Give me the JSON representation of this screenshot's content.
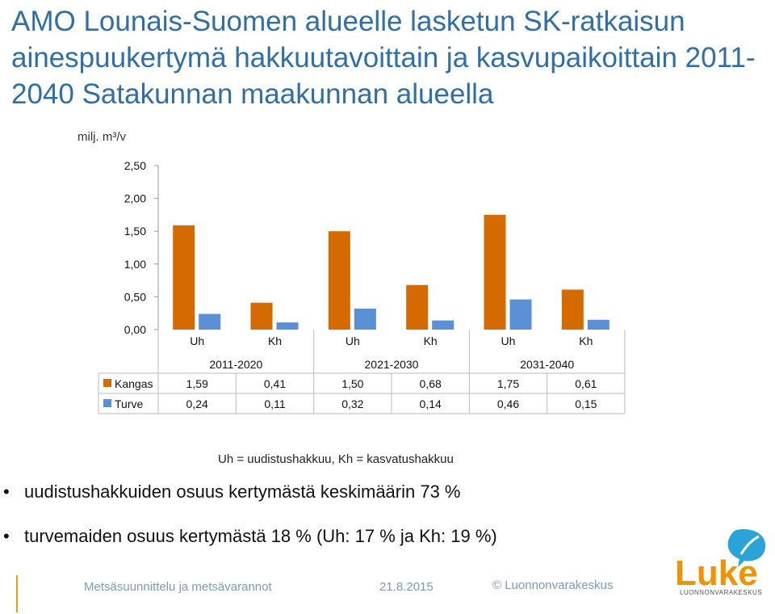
{
  "slide": {
    "title": "AMO Lounais-Suomen alueelle lasketun SK-ratkaisun ainespuukertymä hakkuutavoittain ja kasvupaikoittain 2011-2040 Satakunnan maakunnan alueella",
    "unit_label": "milj. m³/v",
    "note": "Uh = uudistushakkuu, Kh = kasvatushakkuu",
    "bullets": [
      "uudistushakkuiden osuus kertymästä keskimäärin 73 %",
      "turvemaiden osuus kertymästä 18 % (Uh: 17 % ja Kh: 19 %)"
    ],
    "footer": {
      "left": "Metsäsuunnittelu ja metsävarannot",
      "date": "21.8.2015",
      "copyright": "© Luonnonvarakeskus"
    },
    "logo": {
      "text": "Luke",
      "subtext": "LUONNONVARAKESKUS",
      "color": "#f29200",
      "bubble_color": "#2aa3d8"
    }
  },
  "chart_data": {
    "type": "bar",
    "categories": [
      "Uh",
      "Kh",
      "Uh",
      "Kh",
      "Uh",
      "Kh"
    ],
    "groups": [
      "2011-2020",
      "2021-2030",
      "2031-2040"
    ],
    "series": [
      {
        "name": "Kangas",
        "color": "#d46a00",
        "values": [
          1.59,
          0.41,
          1.5,
          0.68,
          1.75,
          0.61
        ],
        "labels": [
          "1,59",
          "0,41",
          "1,50",
          "0,68",
          "1,75",
          "0,61"
        ]
      },
      {
        "name": "Turve",
        "color": "#5b8fd6",
        "values": [
          0.24,
          0.11,
          0.32,
          0.14,
          0.46,
          0.15
        ],
        "labels": [
          "0,24",
          "0,11",
          "0,32",
          "0,14",
          "0,46",
          "0,15"
        ]
      }
    ],
    "ylim": [
      0,
      2.5
    ],
    "yticks": [
      "0,00",
      "0,50",
      "1,00",
      "1,50",
      "2,00",
      "2,50"
    ],
    "ylabel": "milj. m³/v",
    "data_table": true,
    "grid": false
  }
}
